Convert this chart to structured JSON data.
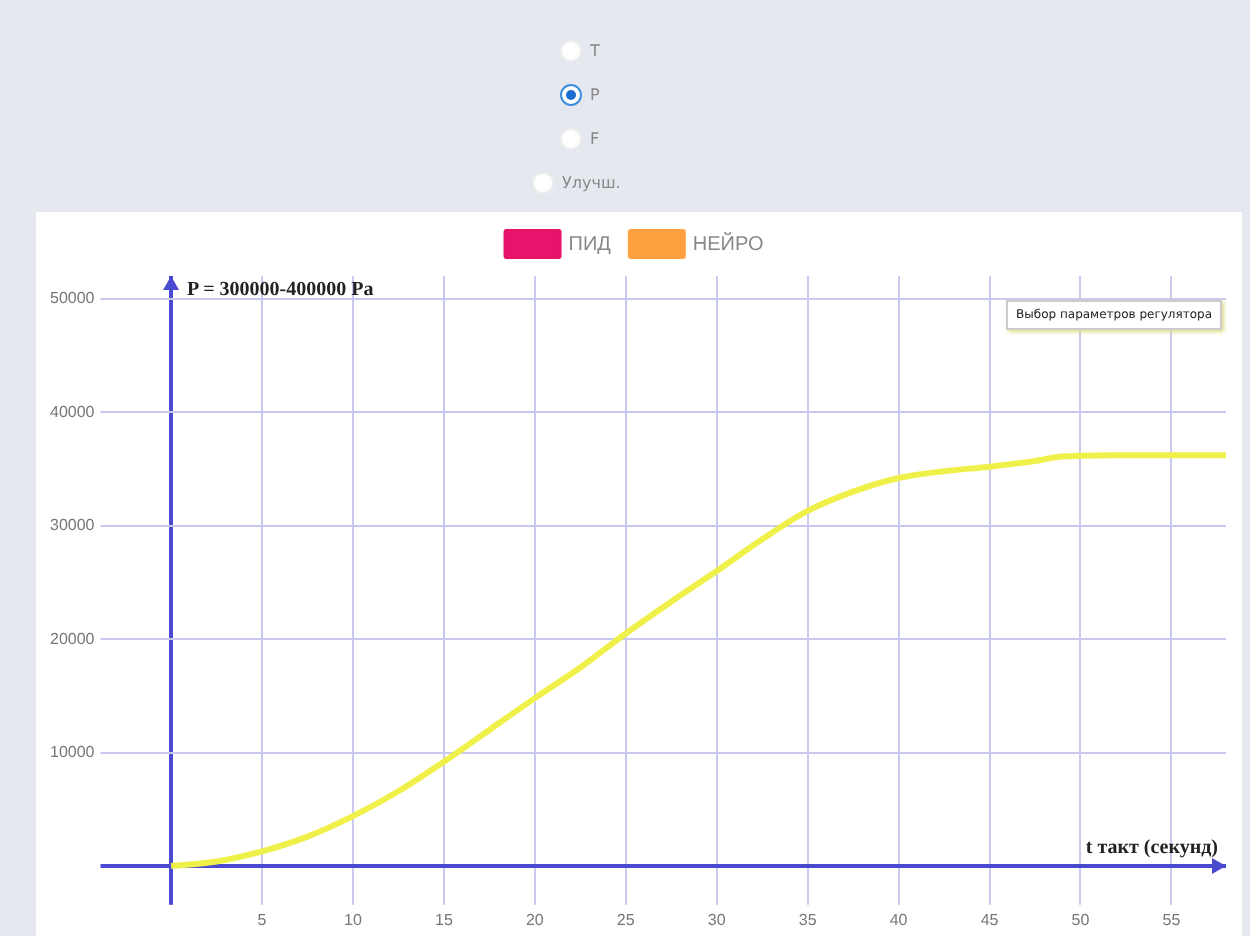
{
  "chart_data": {
    "type": "line",
    "xlabel": "t такт (секунд)",
    "ylabel": "P = 300000-400000 Pa",
    "annotations": [
      "T",
      "P",
      "F",
      "Улучш.",
      "Выбор параметров регулятора"
    ],
    "x": [
      0,
      2.5,
      5,
      7.5,
      10,
      12.5,
      15,
      17.5,
      20,
      22.5,
      25,
      27.5,
      30,
      32.5,
      35,
      37.5,
      40,
      42.5,
      45,
      47.5,
      49,
      52,
      55,
      58
    ],
    "series": [
      {
        "name": "ПИД",
        "color": "#e8136a",
        "values": [
          null,
          null,
          null,
          null,
          null,
          null,
          null,
          null,
          null,
          null,
          null,
          null,
          null,
          null,
          null,
          null,
          null,
          null,
          null,
          null,
          null,
          null,
          null,
          null
        ]
      },
      {
        "name": "НЕЙРО",
        "color": "#ffa040",
        "values": [
          null,
          null,
          null,
          null,
          null,
          null,
          null,
          null,
          null,
          null,
          null,
          null,
          null,
          null,
          null,
          null,
          null,
          null,
          null,
          null,
          null,
          null,
          null,
          null
        ]
      },
      {
        "color": "#f0f04a",
        "values": [
          0,
          400,
          1300,
          2600,
          4400,
          6600,
          9200,
          12000,
          14800,
          17500,
          20500,
          23300,
          26000,
          28800,
          31300,
          33000,
          34200,
          34800,
          35200,
          35700,
          36100,
          36200,
          36200,
          36200
        ]
      }
    ],
    "xlim": [
      -3,
      58
    ],
    "xticks": [
      {
        "value": 0,
        "label": null
      },
      5,
      10,
      15,
      20,
      25,
      30,
      35,
      40,
      45,
      50,
      55
    ],
    "ylim": [
      -2000,
      52000
    ],
    "yticks": [
      {
        "value": 0,
        "label": null
      },
      10000,
      20000,
      30000,
      40000,
      50000
    ],
    "grid": true,
    "legend": "top",
    "marker": "none",
    "line_style": "solid"
  }
}
